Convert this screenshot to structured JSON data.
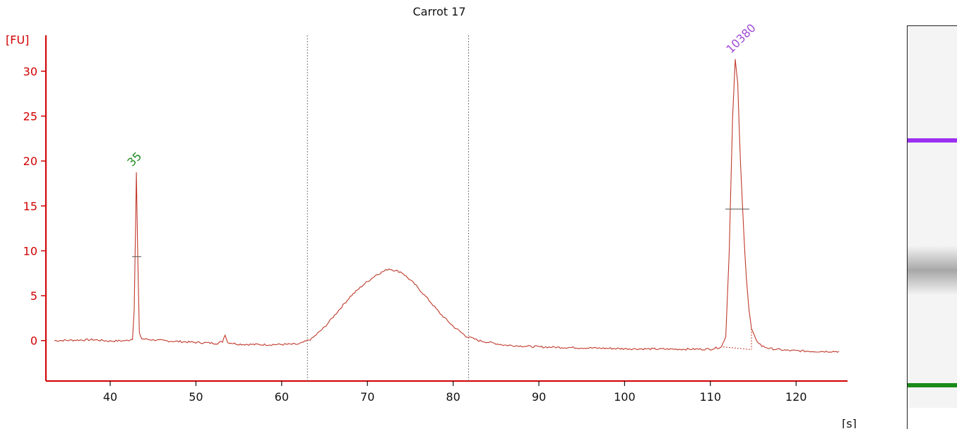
{
  "chart_data": {
    "type": "line",
    "title": "Carrot 17",
    "xlabel": "[s]",
    "ylabel": "[FU]",
    "xlim": [
      32.5,
      126
    ],
    "ylim": [
      -4.5,
      34
    ],
    "x_ticks": [
      40,
      50,
      60,
      70,
      80,
      90,
      100,
      110,
      120
    ],
    "y_ticks": [
      0,
      5,
      10,
      15,
      20,
      25,
      30
    ],
    "line_color": "#c0392b",
    "axis_color": "#d10000",
    "grid": false,
    "series": [
      {
        "values_xy": [
          [
            33.5,
            0.0
          ],
          [
            38,
            0.1
          ],
          [
            40,
            -0.05
          ],
          [
            42,
            0.0
          ],
          [
            42.6,
            0.2
          ],
          [
            42.8,
            3.5
          ],
          [
            42.95,
            12.5
          ],
          [
            43.05,
            18.7
          ],
          [
            43.2,
            10.0
          ],
          [
            43.4,
            0.8
          ],
          [
            43.7,
            0.2
          ],
          [
            46,
            0.0
          ],
          [
            50,
            -0.2
          ],
          [
            52.5,
            -0.3
          ],
          [
            53.1,
            -0.1
          ],
          [
            53.4,
            0.7
          ],
          [
            53.7,
            -0.2
          ],
          [
            55,
            -0.4
          ],
          [
            58,
            -0.45
          ],
          [
            62,
            -0.4
          ],
          [
            63.5,
            0.2
          ],
          [
            65,
            1.5
          ],
          [
            66.5,
            3.2
          ],
          [
            68,
            4.9
          ],
          [
            69.5,
            6.2
          ],
          [
            71,
            7.3
          ],
          [
            72.5,
            8.0
          ],
          [
            74,
            7.6
          ],
          [
            75.5,
            6.3
          ],
          [
            77,
            4.7
          ],
          [
            78.5,
            3.0
          ],
          [
            80,
            1.6
          ],
          [
            81.5,
            0.5
          ],
          [
            83,
            0.0
          ],
          [
            86,
            -0.5
          ],
          [
            90,
            -0.7
          ],
          [
            95,
            -0.8
          ],
          [
            100,
            -0.9
          ],
          [
            105,
            -0.95
          ],
          [
            110,
            -0.95
          ],
          [
            111.3,
            -0.7
          ],
          [
            111.8,
            0.5
          ],
          [
            112.2,
            10.0
          ],
          [
            112.6,
            25.0
          ],
          [
            112.9,
            31.3
          ],
          [
            113.2,
            28.5
          ],
          [
            113.5,
            20.0
          ],
          [
            113.9,
            12.0
          ],
          [
            114.2,
            7.0
          ],
          [
            114.5,
            3.5
          ],
          [
            114.8,
            1.3
          ],
          [
            115.3,
            0.1
          ],
          [
            116,
            -0.6
          ],
          [
            117,
            -0.9
          ],
          [
            119,
            -1.1
          ],
          [
            122,
            -1.2
          ],
          [
            125,
            -1.2
          ]
        ]
      }
    ],
    "peaks": [
      {
        "label": "35",
        "x": 43.05,
        "y": 18.7,
        "color": "#1f8a1f"
      },
      {
        "label": "10380",
        "x": 112.9,
        "y": 31.3,
        "color": "#a04bd6"
      }
    ],
    "region_markers": [
      63.0,
      81.8
    ],
    "gel": {
      "bands": [
        {
          "position": 0.3,
          "color": "#9b30f0"
        },
        {
          "position": 0.64,
          "color": "#9a9a9a"
        },
        {
          "position": 0.94,
          "color": "#1a8a1a"
        }
      ]
    }
  }
}
